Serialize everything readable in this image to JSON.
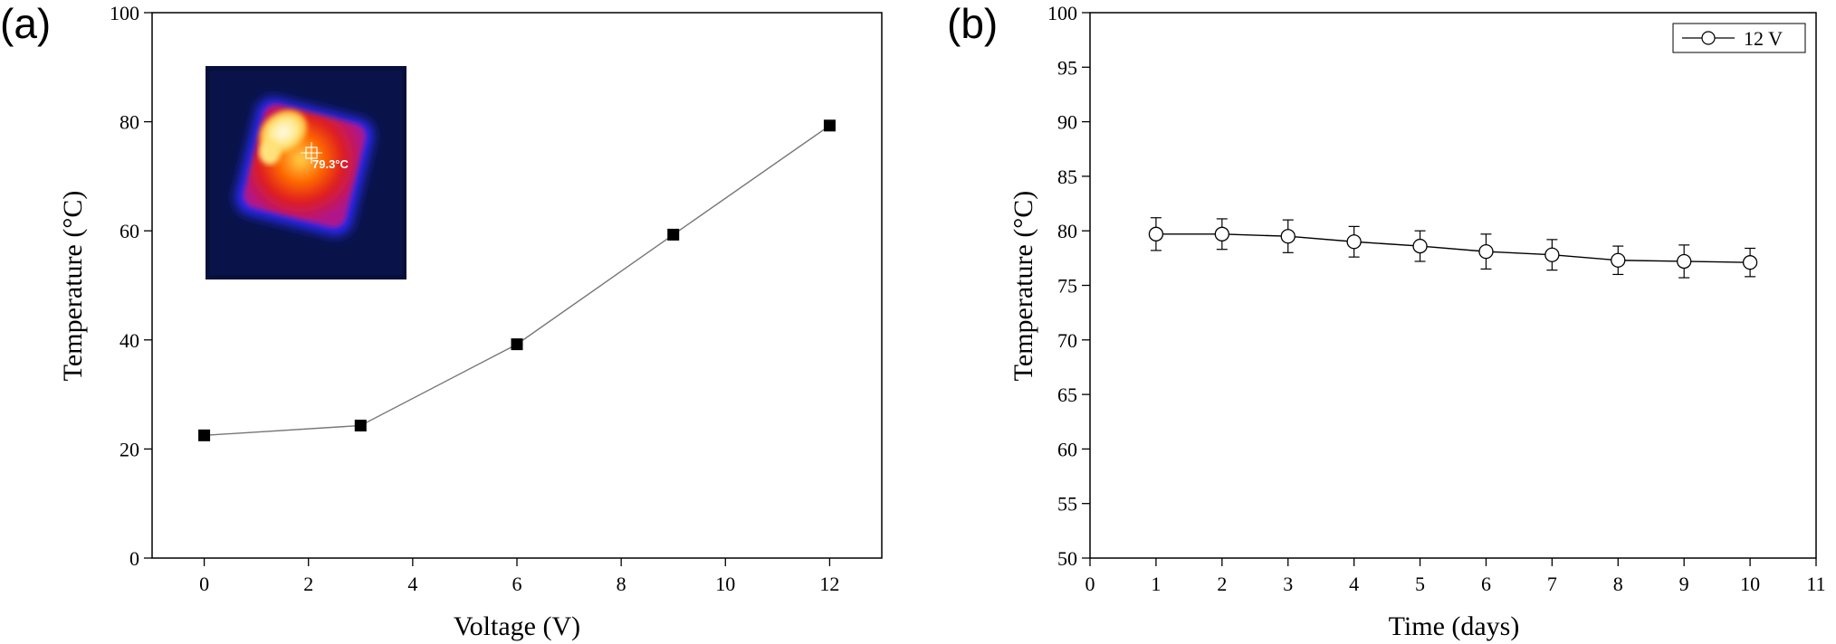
{
  "chart_data": [
    {
      "panel": "(a)",
      "type": "line",
      "xlabel": "Voltage (V)",
      "ylabel": "Temperature (°C)",
      "xlim": [
        -1,
        13
      ],
      "ylim": [
        0,
        100
      ],
      "xticks": [
        0,
        2,
        4,
        6,
        8,
        10,
        12
      ],
      "yticks": [
        0,
        20,
        40,
        60,
        80,
        100
      ],
      "grid": false,
      "marker": "filled-square",
      "series": [
        {
          "x": [
            0,
            3,
            6,
            9,
            12
          ],
          "y": [
            22.5,
            24.3,
            39.2,
            59.3,
            79.3
          ]
        }
      ],
      "inset": {
        "type": "thermal-image",
        "annotation": "79.3°C"
      }
    },
    {
      "panel": "(b)",
      "type": "line",
      "xlabel": "Time (days)",
      "ylabel": "Temperature (°C)",
      "xlim": [
        0,
        11
      ],
      "ylim": [
        50,
        100
      ],
      "xticks": [
        0,
        1,
        2,
        3,
        4,
        5,
        6,
        7,
        8,
        9,
        10,
        11
      ],
      "yticks": [
        50,
        55,
        60,
        65,
        70,
        75,
        80,
        85,
        90,
        95,
        100
      ],
      "grid": false,
      "legend": "top-right",
      "marker": "open-circle",
      "series": [
        {
          "name": "12 V",
          "x": [
            1,
            2,
            3,
            4,
            5,
            6,
            7,
            8,
            9,
            10
          ],
          "y": [
            79.7,
            79.7,
            79.5,
            79.0,
            78.6,
            78.1,
            77.8,
            77.3,
            77.2,
            77.1
          ],
          "error": [
            1.5,
            1.4,
            1.5,
            1.4,
            1.4,
            1.6,
            1.4,
            1.3,
            1.5,
            1.3
          ]
        }
      ]
    }
  ]
}
